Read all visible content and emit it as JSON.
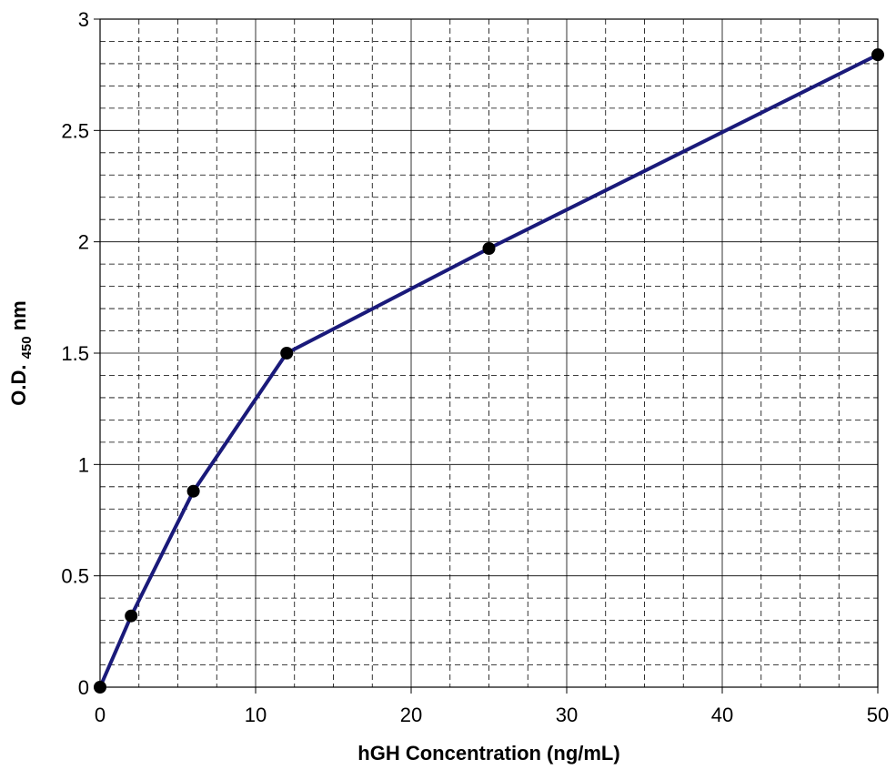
{
  "chart_data": {
    "type": "line",
    "title": "",
    "xlabel": "hGH Concentration (ng/mL)",
    "ylabel": {
      "prefix": "O.D. ",
      "subscript": "450",
      "suffix": " nm"
    },
    "xlim": [
      0,
      50
    ],
    "ylim": [
      0,
      3
    ],
    "x_ticks": [
      0,
      10,
      20,
      30,
      40,
      50
    ],
    "y_ticks": [
      0,
      0.5,
      1,
      1.5,
      2,
      2.5,
      3
    ],
    "x_tick_labels": [
      "0",
      "10",
      "20",
      "30",
      "40",
      "50"
    ],
    "y_tick_labels": [
      "0",
      "0.5",
      "1",
      "1.5",
      "2",
      "2.5",
      "3"
    ],
    "x_minor_step": 2.5,
    "y_minor_step": 0.1,
    "grid": true,
    "legend": "none",
    "series": [
      {
        "x": [
          0,
          2,
          6,
          12,
          25,
          50
        ],
        "y": [
          0.0,
          0.32,
          0.88,
          1.5,
          1.97,
          2.84
        ]
      }
    ],
    "colors": {
      "line": "#1a1a7a",
      "marker": "#000000",
      "major_grid": "#000000",
      "minor_grid": "#000000",
      "plot_border": "#000000"
    }
  }
}
